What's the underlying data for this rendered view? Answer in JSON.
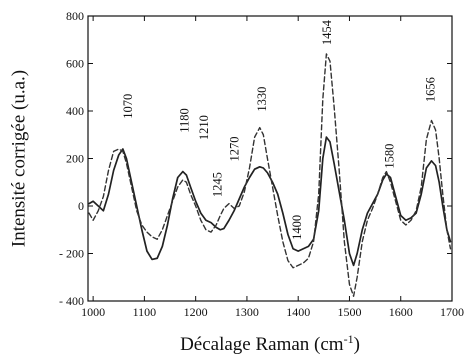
{
  "chart_data": {
    "type": "line",
    "title": "",
    "xlabel": "Décalage Raman (cm",
    "xlabel_sup": "-1",
    "xlabel_close": ")",
    "ylabel": "Intensité corrigée (u.a.)",
    "xlim": [
      990,
      1700
    ],
    "ylim": [
      -400,
      800
    ],
    "xticks": [
      1000,
      1100,
      1200,
      1300,
      1400,
      1500,
      1600,
      1700
    ],
    "xtick_labels": [
      "1000",
      "1100",
      "1200",
      "1300",
      "1400",
      "1500",
      "1600",
      "1700"
    ],
    "yticks": [
      -400,
      -200,
      0,
      200,
      400,
      600,
      800
    ],
    "ytick_labels": [
      "- 400",
      "- 200",
      "0",
      "200",
      "400",
      "600",
      "800"
    ],
    "grid": false,
    "legend": "none",
    "series": [
      {
        "style": "solid",
        "color": "#222222",
        "x": [
          992,
          1000,
          1010,
          1020,
          1030,
          1040,
          1050,
          1058,
          1065,
          1075,
          1085,
          1095,
          1105,
          1115,
          1125,
          1135,
          1145,
          1155,
          1165,
          1175,
          1182,
          1190,
          1200,
          1210,
          1220,
          1230,
          1240,
          1248,
          1255,
          1265,
          1275,
          1285,
          1295,
          1305,
          1315,
          1325,
          1332,
          1340,
          1350,
          1360,
          1370,
          1380,
          1390,
          1400,
          1410,
          1420,
          1430,
          1440,
          1448,
          1455,
          1462,
          1470,
          1480,
          1490,
          1500,
          1508,
          1515,
          1525,
          1535,
          1545,
          1555,
          1565,
          1572,
          1580,
          1590,
          1600,
          1610,
          1620,
          1630,
          1640,
          1650,
          1660,
          1668,
          1675,
          1682,
          1690,
          1697
        ],
        "y": [
          10,
          20,
          0,
          -20,
          50,
          150,
          215,
          240,
          200,
          100,
          0,
          -100,
          -190,
          -225,
          -220,
          -170,
          -80,
          30,
          120,
          145,
          130,
          80,
          20,
          -30,
          -60,
          -70,
          -90,
          -100,
          -95,
          -60,
          -20,
          30,
          80,
          120,
          155,
          165,
          160,
          140,
          100,
          50,
          -30,
          -120,
          -180,
          -190,
          -180,
          -170,
          -140,
          -20,
          200,
          290,
          270,
          180,
          60,
          -60,
          -200,
          -250,
          -200,
          -100,
          -30,
          10,
          50,
          110,
          135,
          120,
          40,
          -40,
          -60,
          -50,
          -30,
          50,
          160,
          190,
          170,
          100,
          0,
          -100,
          -150
        ]
      },
      {
        "style": "dashed",
        "color": "#333333",
        "x": [
          992,
          1000,
          1010,
          1020,
          1030,
          1040,
          1050,
          1058,
          1065,
          1075,
          1085,
          1095,
          1105,
          1115,
          1125,
          1135,
          1145,
          1155,
          1165,
          1175,
          1182,
          1190,
          1200,
          1210,
          1220,
          1230,
          1240,
          1248,
          1255,
          1265,
          1275,
          1285,
          1295,
          1305,
          1315,
          1325,
          1332,
          1340,
          1350,
          1360,
          1370,
          1380,
          1390,
          1400,
          1410,
          1420,
          1430,
          1440,
          1448,
          1455,
          1462,
          1470,
          1480,
          1490,
          1500,
          1508,
          1515,
          1525,
          1535,
          1545,
          1555,
          1565,
          1572,
          1580,
          1590,
          1600,
          1610,
          1620,
          1630,
          1640,
          1650,
          1660,
          1668,
          1675,
          1682,
          1690,
          1697
        ],
        "y": [
          -30,
          -60,
          -20,
          40,
          150,
          230,
          240,
          230,
          180,
          80,
          -20,
          -80,
          -110,
          -130,
          -140,
          -100,
          -40,
          20,
          80,
          110,
          100,
          50,
          0,
          -60,
          -100,
          -110,
          -80,
          -40,
          -10,
          10,
          -10,
          0,
          60,
          160,
          290,
          330,
          300,
          200,
          80,
          -40,
          -150,
          -230,
          -260,
          -250,
          -240,
          -220,
          -150,
          50,
          450,
          640,
          610,
          420,
          150,
          -150,
          -330,
          -380,
          -300,
          -150,
          -60,
          -10,
          50,
          120,
          145,
          100,
          20,
          -60,
          -80,
          -60,
          -20,
          80,
          280,
          360,
          320,
          200,
          50,
          -100,
          -180
        ]
      }
    ],
    "annotations": [
      {
        "text": "1070",
        "x": 1070,
        "y": 420,
        "rotate": true
      },
      {
        "text": "1180",
        "x": 1180,
        "y": 360,
        "rotate": true
      },
      {
        "text": "1210",
        "x": 1218,
        "y": 330,
        "rotate": true
      },
      {
        "text": "1245",
        "x": 1245,
        "y": 90,
        "rotate": true
      },
      {
        "text": "1270",
        "x": 1278,
        "y": 240,
        "rotate": true
      },
      {
        "text": "1330",
        "x": 1332,
        "y": 450,
        "rotate": true
      },
      {
        "text": "1400",
        "x": 1400,
        "y": -90,
        "rotate": true
      },
      {
        "text": "1454",
        "x": 1458,
        "y": 730,
        "rotate": true
      },
      {
        "text": "1580",
        "x": 1580,
        "y": 210,
        "rotate": true
      },
      {
        "text": "1656",
        "x": 1660,
        "y": 490,
        "rotate": true
      }
    ]
  }
}
